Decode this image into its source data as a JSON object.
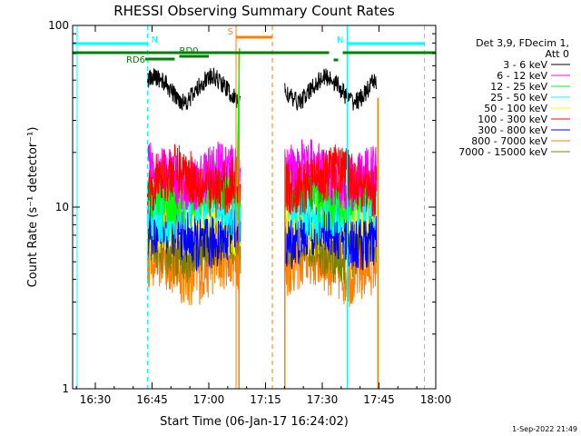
{
  "chart_data": {
    "type": "line",
    "title": "RHESSI Observing Summary Count Rates",
    "xlabel": "Start Time (06-Jan-17 16:24:02)",
    "ylabel": "Count Rate (s⁻¹ detector⁻¹)",
    "y_scale": "log",
    "ylim": [
      1,
      100
    ],
    "xlim_minutes": [
      16.4,
      18.0
    ],
    "x_ticks": [
      {
        "label": "16:30",
        "value": 16.5
      },
      {
        "label": "16:45",
        "value": 16.75
      },
      {
        "label": "17:00",
        "value": 17.0
      },
      {
        "label": "17:15",
        "value": 17.25
      },
      {
        "label": "17:30",
        "value": 17.5
      },
      {
        "label": "17:45",
        "value": 17.75
      },
      {
        "label": "18:00",
        "value": 18.0
      }
    ],
    "y_ticks": [
      {
        "label": "1",
        "value": 1
      },
      {
        "label": "10",
        "value": 10
      },
      {
        "label": "100",
        "value": 100
      }
    ],
    "legend_header": [
      "Det 3,9, FDecim 1,",
      "Att 0"
    ],
    "legend_placement": "right",
    "series": [
      {
        "name": "3 - 6 keV",
        "color": "#000000",
        "level": 45
      },
      {
        "name": "6 - 12 keV",
        "color": "#ff00ff",
        "level": 15
      },
      {
        "name": "12 - 25 keV",
        "color": "#00ff00",
        "level": 12
      },
      {
        "name": "25 - 50 keV",
        "color": "#00ffff",
        "level": 10
      },
      {
        "name": "50 - 100 keV",
        "color": "#ffff00",
        "level": 8.5
      },
      {
        "name": "100 - 300 keV",
        "color": "#ff0000",
        "level": 14
      },
      {
        "name": "300 - 800 keV",
        "color": "#0000ff",
        "level": 7
      },
      {
        "name": "800 - 7000 keV",
        "color": "#ff8000",
        "level": 5
      },
      {
        "name": "7000 - 15000 keV",
        "color": "#808000",
        "level": 6
      }
    ],
    "data_gaps": [
      [
        17.145,
        17.33
      ]
    ],
    "annotations": [
      {
        "label": "N",
        "color": "#00ffff",
        "start": 16.4,
        "end": 16.73
      },
      {
        "label": "N",
        "color": "#00ffff",
        "start": 17.61,
        "end": 17.95
      },
      {
        "label": "S",
        "color": "#ff8000",
        "start": 17.12,
        "end": 17.28
      },
      {
        "label": "RD6",
        "color": "#008000",
        "start": 16.72,
        "end": 16.85
      },
      {
        "label": "RD0",
        "color": "#008000",
        "start": 16.87,
        "end": 17.0
      }
    ],
    "footer_stamp": "1-Sep-2022 21:49"
  }
}
